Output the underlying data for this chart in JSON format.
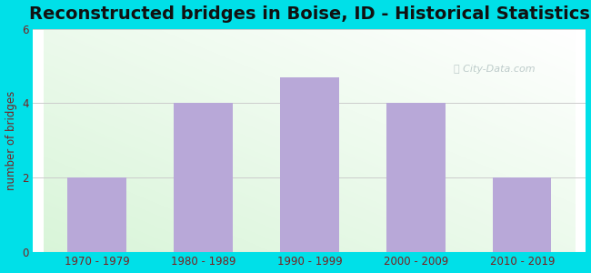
{
  "title": "Reconstructed bridges in Boise, ID - Historical Statistics",
  "categories": [
    "1970 - 1979",
    "1980 - 1989",
    "1990 - 1999",
    "2000 - 2009",
    "2010 - 2019"
  ],
  "values": [
    2,
    4,
    4.7,
    4,
    2
  ],
  "bar_color": "#b8a8d8",
  "ylabel": "number of bridges",
  "ylim": [
    0,
    6
  ],
  "yticks": [
    0,
    2,
    4,
    6
  ],
  "background_outer": "#00e0e8",
  "title_fontsize": 14,
  "axis_label_color": "#7a2020",
  "tick_label_color": "#7a2020",
  "grid_color": "#cccccc",
  "watermark": "City-Data.com",
  "bar_width": 0.55
}
